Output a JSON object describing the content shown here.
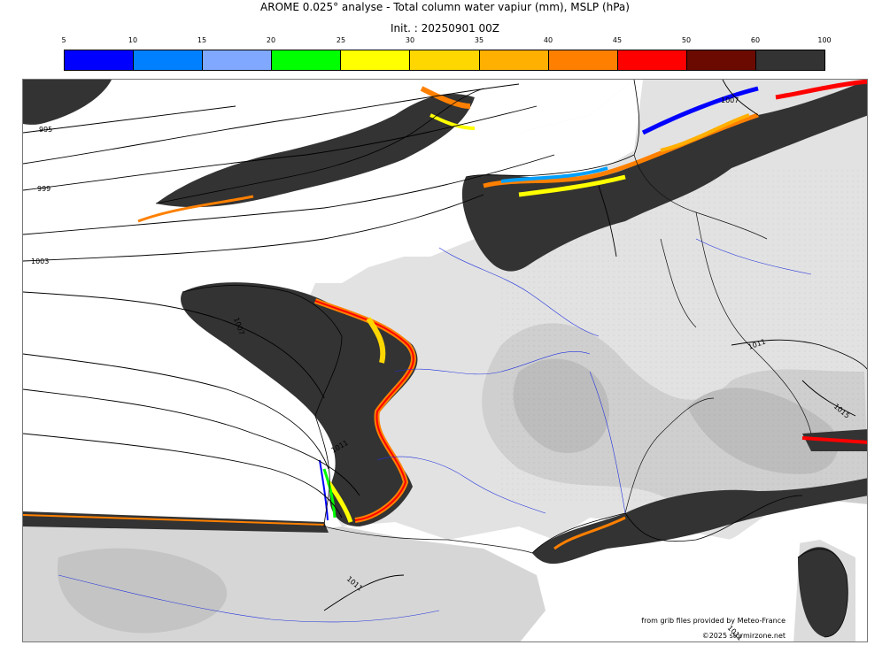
{
  "header": {
    "title": "AROME 0.025° analyse - Total column water vapiur (mm), MSLP (hPa)",
    "init": "Init. : 20250901 00Z"
  },
  "colorbar": {
    "ticks": [
      "5",
      "10",
      "15",
      "20",
      "25",
      "30",
      "35",
      "40",
      "45",
      "50",
      "60",
      "100"
    ],
    "colors": [
      "#0000ff",
      "#0080ff",
      "#80a8ff",
      "#00ff00",
      "#ffff00",
      "#ffd700",
      "#ffb000",
      "#ff8000",
      "#ff0000",
      "#6b0a00",
      "#333333"
    ]
  },
  "map": {
    "isobar_labels": [
      "995",
      "999",
      "1003",
      "1007",
      "1007",
      "1011",
      "1011",
      "1011",
      "1011",
      "1015"
    ]
  },
  "footer": {
    "source": "from grib files provided by Meteo-France",
    "copyright": "©2025 stormirzone.net"
  }
}
